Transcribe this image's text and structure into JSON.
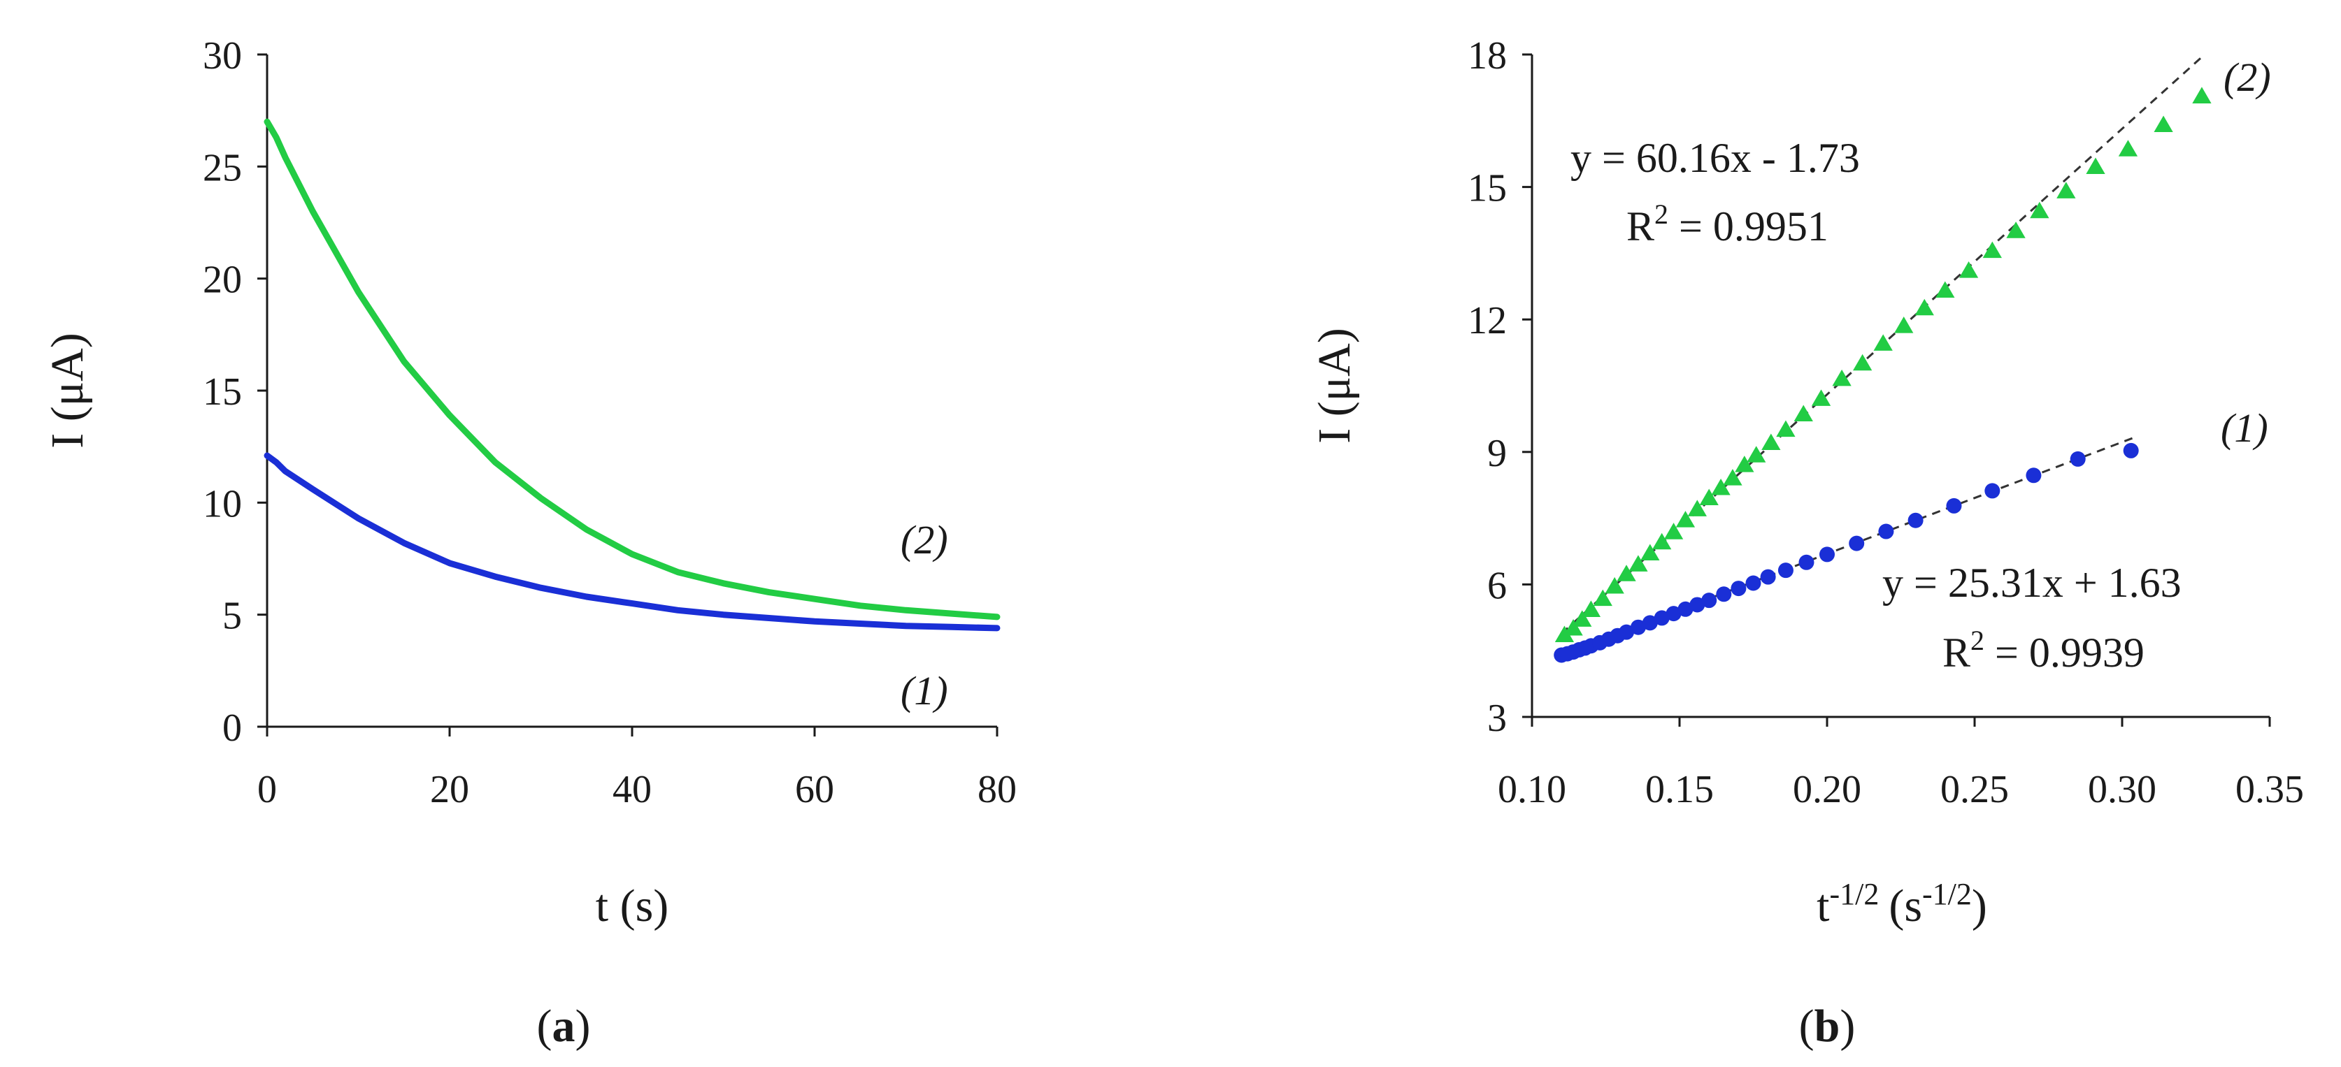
{
  "chart_data": [
    {
      "panel": "a",
      "type": "line",
      "xlabel": "t (s)",
      "ylabel": "I (μA)",
      "xlim": [
        0,
        80
      ],
      "ylim": [
        0,
        30
      ],
      "xticks": [
        0,
        20,
        40,
        60,
        80
      ],
      "yticks": [
        0,
        5,
        10,
        15,
        20,
        25,
        30
      ],
      "x": [
        0,
        1,
        2,
        5,
        10,
        15,
        20,
        25,
        30,
        35,
        40,
        45,
        50,
        55,
        60,
        65,
        70,
        75,
        80
      ],
      "series": [
        {
          "name": "(1)",
          "color": "#1a2fd6",
          "values": [
            12.1,
            11.8,
            11.4,
            10.6,
            9.3,
            8.2,
            7.3,
            6.7,
            6.2,
            5.8,
            5.5,
            5.2,
            5.0,
            4.85,
            4.7,
            4.6,
            4.5,
            4.45,
            4.4
          ]
        },
        {
          "name": "(2)",
          "color": "#22cc44",
          "values": [
            27.0,
            26.3,
            25.4,
            23.0,
            19.4,
            16.3,
            13.9,
            11.8,
            10.2,
            8.8,
            7.7,
            6.9,
            6.4,
            6.0,
            5.7,
            5.4,
            5.2,
            5.05,
            4.9
          ]
        }
      ],
      "series_labels": [
        "(1)",
        "(2)"
      ],
      "panel_label": {
        "open": "(",
        "letter": "a",
        "close": ")"
      }
    },
    {
      "panel": "b",
      "type": "scatter",
      "xlabel": {
        "base_t": "t",
        "exp_t": "-1/2",
        "base_s": "(s",
        "exp_s": "-1/2",
        "close": ")"
      },
      "ylabel": "I (μA)",
      "xlim": [
        0.1,
        0.35
      ],
      "ylim": [
        3,
        18
      ],
      "xticks": [
        "0.10",
        "0.15",
        "0.20",
        "0.25",
        "0.30",
        "0.35"
      ],
      "yticks": [
        3,
        6,
        9,
        12,
        15,
        18
      ],
      "series": [
        {
          "name": "(1)",
          "marker": "circle",
          "color": "#1a2fd6",
          "x": [
            0.11,
            0.112,
            0.114,
            0.116,
            0.118,
            0.12,
            0.123,
            0.126,
            0.129,
            0.132,
            0.136,
            0.14,
            0.144,
            0.148,
            0.152,
            0.156,
            0.16,
            0.165,
            0.17,
            0.175,
            0.18,
            0.186,
            0.193,
            0.2,
            0.21,
            0.22,
            0.23,
            0.243,
            0.256,
            0.27,
            0.285,
            0.303
          ],
          "y": [
            4.4,
            4.43,
            4.47,
            4.52,
            4.56,
            4.61,
            4.68,
            4.76,
            4.84,
            4.92,
            5.03,
            5.13,
            5.24,
            5.34,
            5.44,
            5.54,
            5.64,
            5.78,
            5.91,
            6.03,
            6.17,
            6.32,
            6.5,
            6.68,
            6.93,
            7.2,
            7.45,
            7.78,
            8.12,
            8.47,
            8.84,
            9.03
          ]
        },
        {
          "name": "(2)",
          "marker": "triangle",
          "color": "#22cc44",
          "x": [
            0.111,
            0.114,
            0.117,
            0.12,
            0.124,
            0.128,
            0.132,
            0.136,
            0.14,
            0.144,
            0.148,
            0.152,
            0.156,
            0.16,
            0.164,
            0.168,
            0.172,
            0.176,
            0.181,
            0.186,
            0.192,
            0.198,
            0.205,
            0.212,
            0.219,
            0.226,
            0.233,
            0.24,
            0.248,
            0.256,
            0.264,
            0.272,
            0.281,
            0.291,
            0.302,
            0.314,
            0.327
          ],
          "y": [
            4.85,
            5.0,
            5.2,
            5.42,
            5.67,
            5.95,
            6.23,
            6.45,
            6.7,
            6.95,
            7.18,
            7.45,
            7.7,
            7.95,
            8.18,
            8.4,
            8.7,
            8.92,
            9.2,
            9.5,
            9.85,
            10.2,
            10.65,
            11.0,
            11.45,
            11.85,
            12.25,
            12.65,
            13.1,
            13.55,
            14.0,
            14.45,
            14.9,
            15.45,
            15.85,
            16.4,
            17.05
          ]
        }
      ],
      "fits": [
        {
          "series": "(2)",
          "slope": 60.16,
          "intercept": -1.73,
          "x_range": [
            0.11,
            0.328
          ],
          "equation": "y = 60.16x - 1.73",
          "r2_label": "R",
          "r2_exp": "2",
          "r2_value": " = 0.9951"
        },
        {
          "series": "(1)",
          "slope": 25.31,
          "intercept": 1.63,
          "x_range": [
            0.11,
            0.305
          ],
          "equation": "y = 25.31x + 1.63",
          "r2_label": "R",
          "r2_exp": "2",
          "r2_value": " = 0.9939"
        }
      ],
      "series_labels": [
        "(2)",
        "(1)"
      ],
      "panel_label": {
        "open": "(",
        "letter": "b",
        "close": ")"
      }
    }
  ]
}
